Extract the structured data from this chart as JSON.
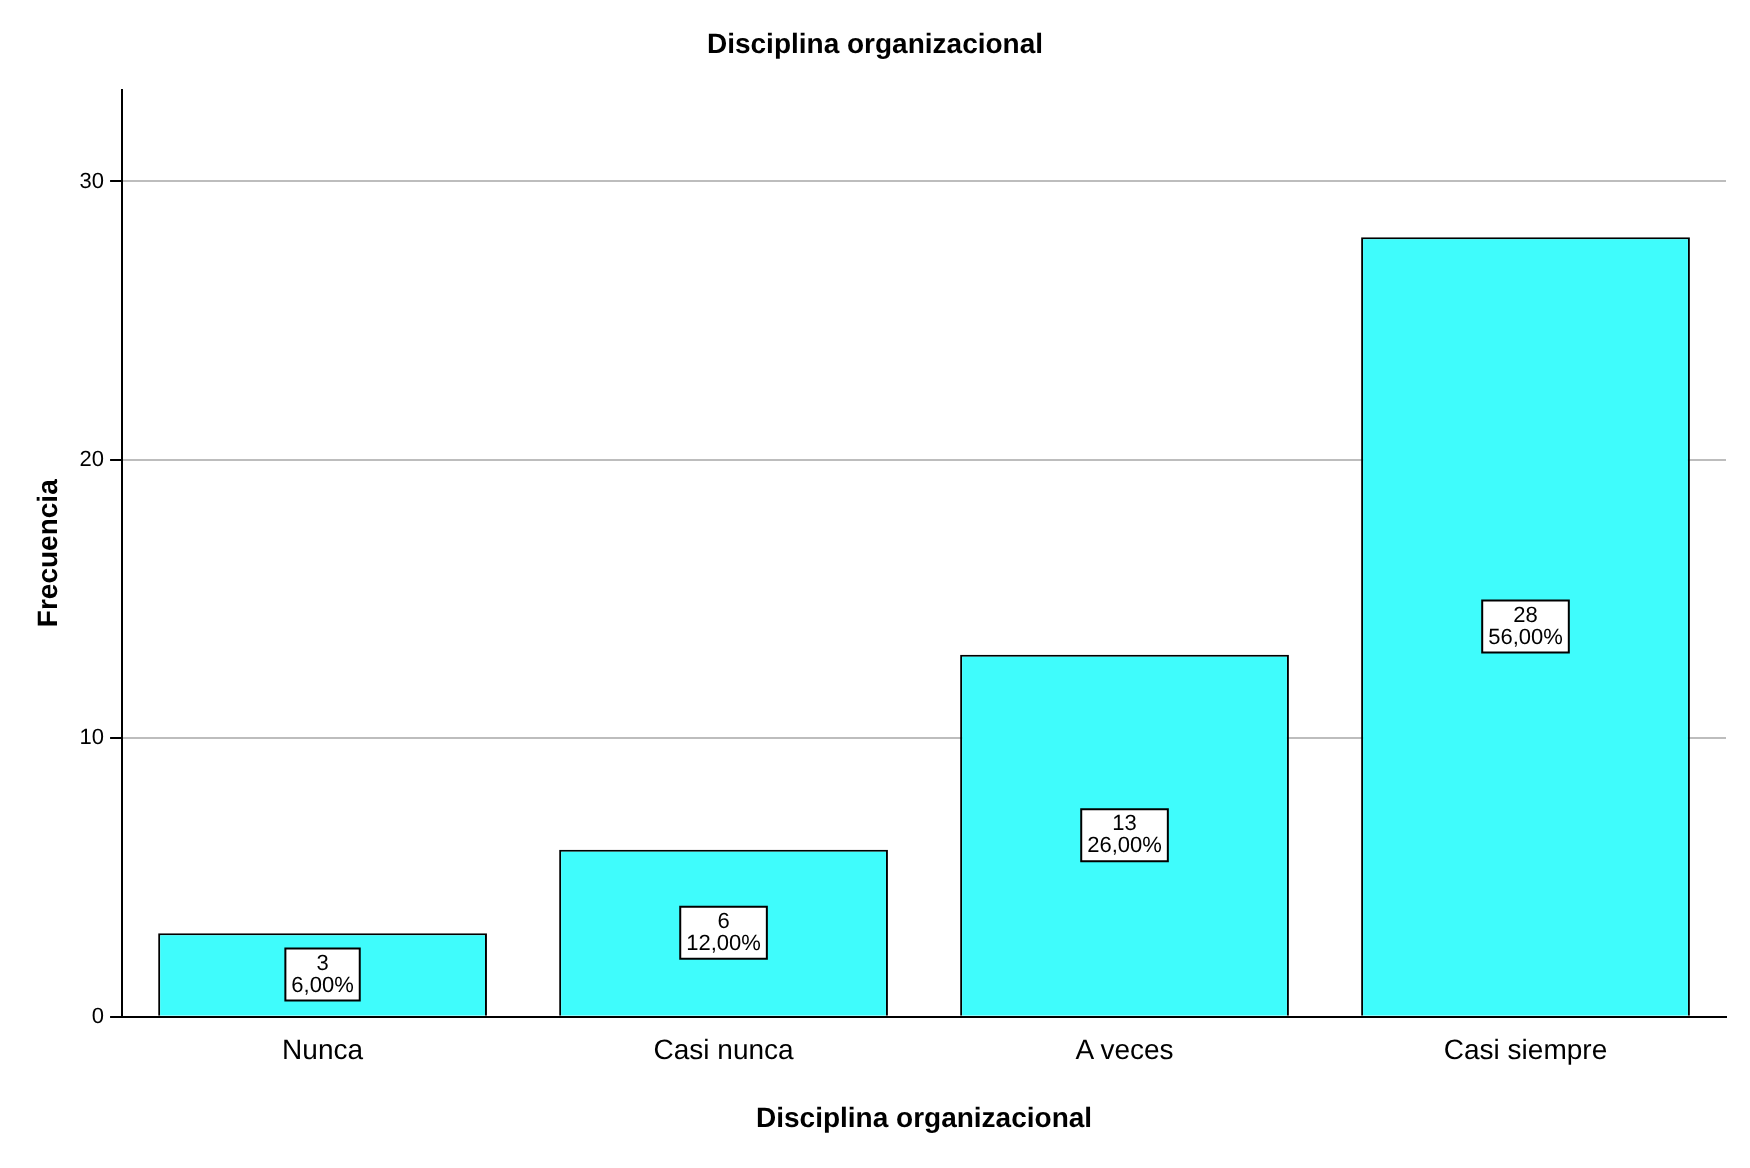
{
  "chart_data": {
    "type": "bar",
    "title": "Disciplina organizacional",
    "xlabel": "Disciplina organizacional",
    "ylabel": "Frecuencia",
    "categories": [
      "Nunca",
      "Casi nunca",
      "A veces",
      "Casi siempre"
    ],
    "values": [
      3,
      6,
      13,
      28
    ],
    "value_labels": [
      "3\n6,00%",
      "6\n12,00%",
      "13\n26,00%",
      "28\n56,00%"
    ],
    "color": "#3ffcfc",
    "ylim": [
      0,
      33.3
    ],
    "yticks": [
      0,
      10,
      20,
      30
    ],
    "grid": "y",
    "legend": false
  }
}
